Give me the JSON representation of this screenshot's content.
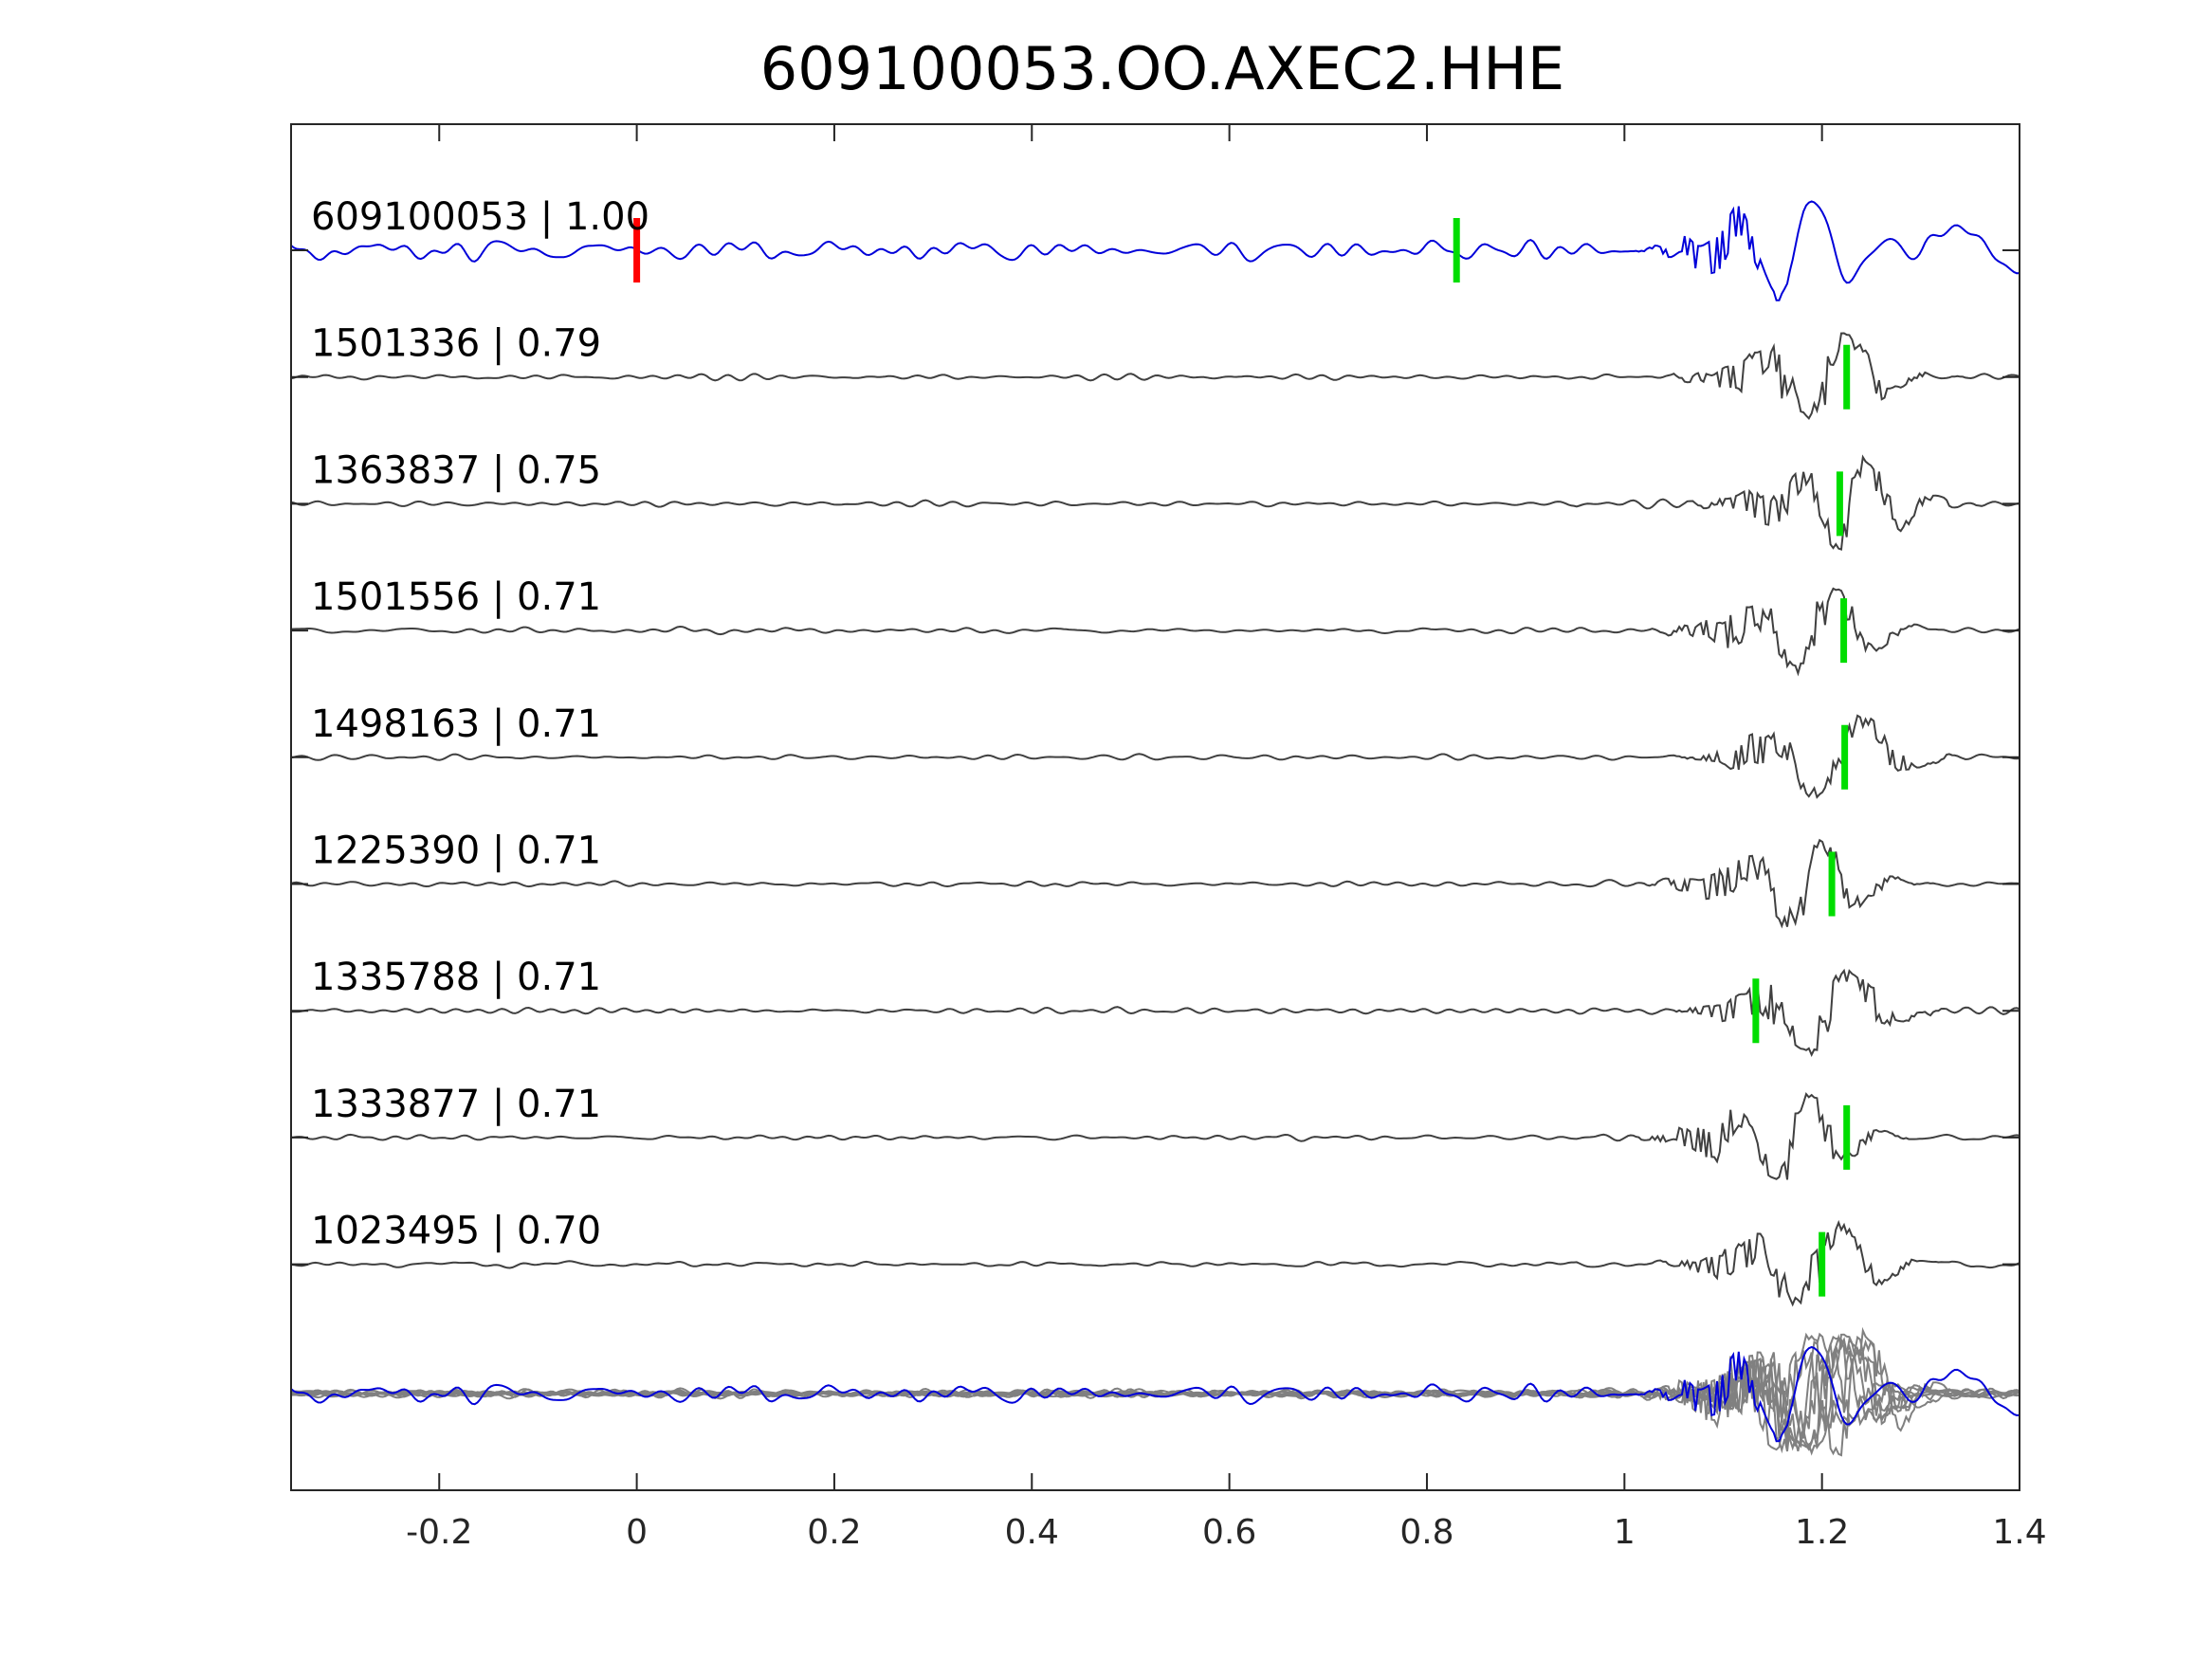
{
  "chart_data": {
    "type": "line",
    "title": "609100053.OO.AXEC2.HHE",
    "xlabel": "",
    "ylabel": "",
    "xlim": [
      -0.35,
      1.4
    ],
    "xticks": [
      -0.2,
      0,
      0.2,
      0.4,
      0.6,
      0.8,
      1,
      1.2,
      1.4
    ],
    "xtick_labels": [
      "-0.2",
      "0",
      "0.2",
      "0.4",
      "0.6",
      "0.8",
      "1",
      "1.2",
      "1.4"
    ],
    "grid": false,
    "colors": {
      "master": "#0000d9",
      "template": "#404040",
      "overlay_template": "#808080",
      "origin_pick": "#ff0000",
      "arrival_pick": "#00dd00",
      "axes": "#262626"
    },
    "traces": [
      {
        "id": "609100053",
        "cc": "1.00",
        "role": "master",
        "picks": [
          {
            "t": 0.0,
            "kind": "origin"
          },
          {
            "t": 0.83,
            "kind": "arrival"
          }
        ]
      },
      {
        "id": "1501336",
        "cc": "0.79",
        "role": "template",
        "picks": [
          {
            "t": 1.225,
            "kind": "arrival"
          }
        ]
      },
      {
        "id": "1363837",
        "cc": "0.75",
        "role": "template",
        "picks": [
          {
            "t": 1.218,
            "kind": "arrival"
          }
        ]
      },
      {
        "id": "1501556",
        "cc": "0.71",
        "role": "template",
        "picks": [
          {
            "t": 1.222,
            "kind": "arrival"
          }
        ]
      },
      {
        "id": "1498163",
        "cc": "0.71",
        "role": "template",
        "picks": [
          {
            "t": 1.223,
            "kind": "arrival"
          }
        ]
      },
      {
        "id": "1225390",
        "cc": "0.71",
        "role": "template",
        "picks": [
          {
            "t": 1.21,
            "kind": "arrival"
          }
        ]
      },
      {
        "id": "1335788",
        "cc": "0.71",
        "role": "template",
        "picks": [
          {
            "t": 1.133,
            "kind": "arrival"
          }
        ]
      },
      {
        "id": "1333877",
        "cc": "0.71",
        "role": "template",
        "picks": [
          {
            "t": 1.225,
            "kind": "arrival"
          }
        ]
      },
      {
        "id": "1023495",
        "cc": "0.70",
        "role": "template",
        "picks": [
          {
            "t": 1.2,
            "kind": "arrival"
          }
        ]
      }
    ],
    "overlay": "all traces superimposed at bottom"
  }
}
